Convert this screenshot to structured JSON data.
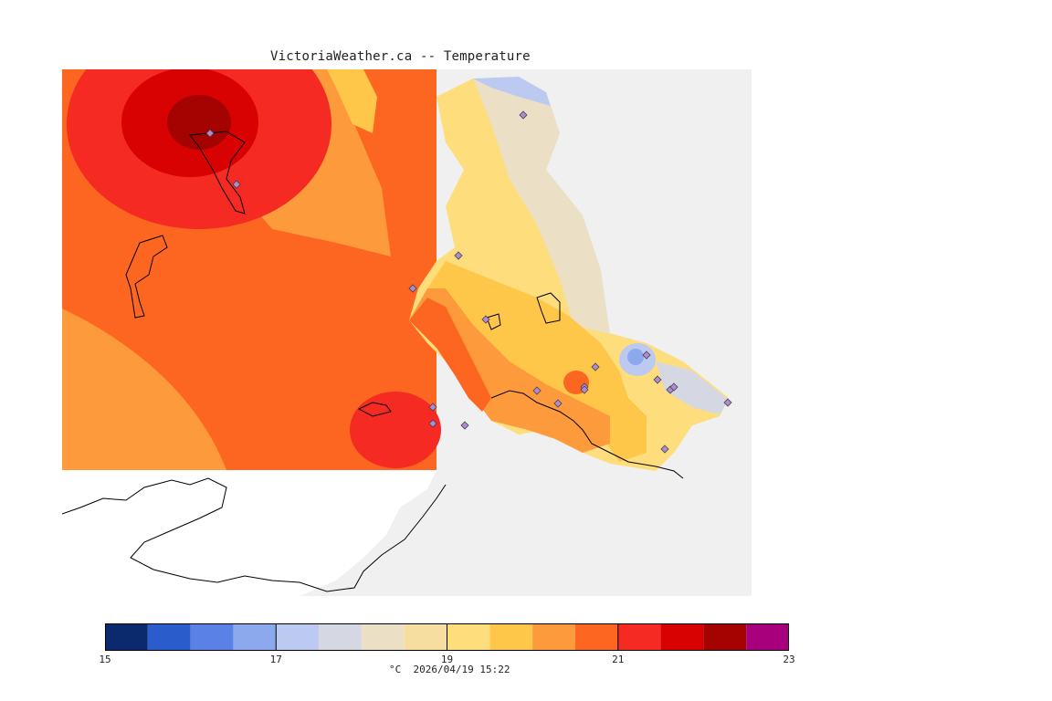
{
  "title": "VictoriaWeather.ca -- Temperature",
  "colorbar": {
    "unit": "°C",
    "timestamp": "2026/04/19 15:22",
    "min": 15,
    "max": 23,
    "tick_labels": [
      "15",
      "17",
      "19",
      "21",
      "23"
    ],
    "tick_values": [
      15,
      17,
      19,
      21,
      23
    ],
    "bins": [
      {
        "from": 15.0,
        "to": 15.5,
        "color": "#0b2a6e"
      },
      {
        "from": 15.5,
        "to": 16.0,
        "color": "#2b5ccc"
      },
      {
        "from": 16.0,
        "to": 16.5,
        "color": "#5a82e6"
      },
      {
        "from": 16.5,
        "to": 17.0,
        "color": "#8ca9ee"
      },
      {
        "from": 17.0,
        "to": 17.5,
        "color": "#bcc9f0"
      },
      {
        "from": 17.5,
        "to": 18.0,
        "color": "#d5d8e3"
      },
      {
        "from": 18.0,
        "to": 18.5,
        "color": "#ebdfc6"
      },
      {
        "from": 18.5,
        "to": 19.0,
        "color": "#f6dda0"
      },
      {
        "from": 19.0,
        "to": 19.5,
        "color": "#fedd7c"
      },
      {
        "from": 19.5,
        "to": 20.0,
        "color": "#fec74a"
      },
      {
        "from": 20.0,
        "to": 20.5,
        "color": "#fd9a3c"
      },
      {
        "from": 20.5,
        "to": 21.0,
        "color": "#fc6620"
      },
      {
        "from": 21.0,
        "to": 21.5,
        "color": "#f42a23"
      },
      {
        "from": 21.5,
        "to": 22.0,
        "color": "#d80202"
      },
      {
        "from": 22.0,
        "to": 22.5,
        "color": "#a50202"
      },
      {
        "from": 22.5,
        "to": 23.0,
        "color": "#a8007d"
      }
    ]
  },
  "map": {
    "background": "#f0f0f0",
    "no_data_color": "#ffffff",
    "outline_color": "#000000",
    "station_marker": "diamond",
    "station_color": "#b08ad6",
    "station_count": 20
  }
}
